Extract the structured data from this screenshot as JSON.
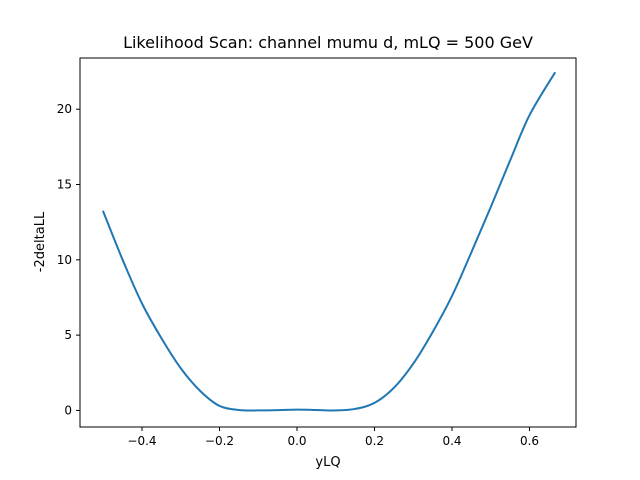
{
  "chart_data": {
    "type": "line",
    "title": "Likelihood Scan: channel mumu d, mLQ = 500 GeV",
    "xlabel": "yLQ",
    "ylabel": "-2deltaLL",
    "xlim": [
      -0.56,
      0.72
    ],
    "ylim": [
      -1.1,
      23.4
    ],
    "grid": false,
    "legend": "none",
    "xticks": [
      -0.4,
      -0.2,
      0.0,
      0.2,
      0.4,
      0.6
    ],
    "xtick_labels": [
      "−0.4",
      "−0.2",
      "0.0",
      "0.2",
      "0.4",
      "0.6"
    ],
    "yticks": [
      0,
      5,
      10,
      15,
      20
    ],
    "ytick_labels": [
      "0",
      "5",
      "10",
      "15",
      "20"
    ],
    "series": [
      {
        "color": "#1f77b4",
        "x": [
          -0.5,
          -0.45,
          -0.4,
          -0.35,
          -0.3,
          -0.25,
          -0.2,
          -0.15,
          -0.1,
          -0.05,
          0.0,
          0.05,
          0.1,
          0.15,
          0.2,
          0.25,
          0.3,
          0.35,
          0.4,
          0.45,
          0.5,
          0.55,
          0.6,
          0.665
        ],
        "y": [
          13.2,
          10.0,
          7.1,
          4.8,
          2.8,
          1.3,
          0.3,
          0.03,
          0.0,
          0.02,
          0.05,
          0.03,
          0.0,
          0.1,
          0.5,
          1.5,
          3.1,
          5.2,
          7.6,
          10.5,
          13.5,
          16.6,
          19.6,
          22.4
        ]
      }
    ]
  }
}
